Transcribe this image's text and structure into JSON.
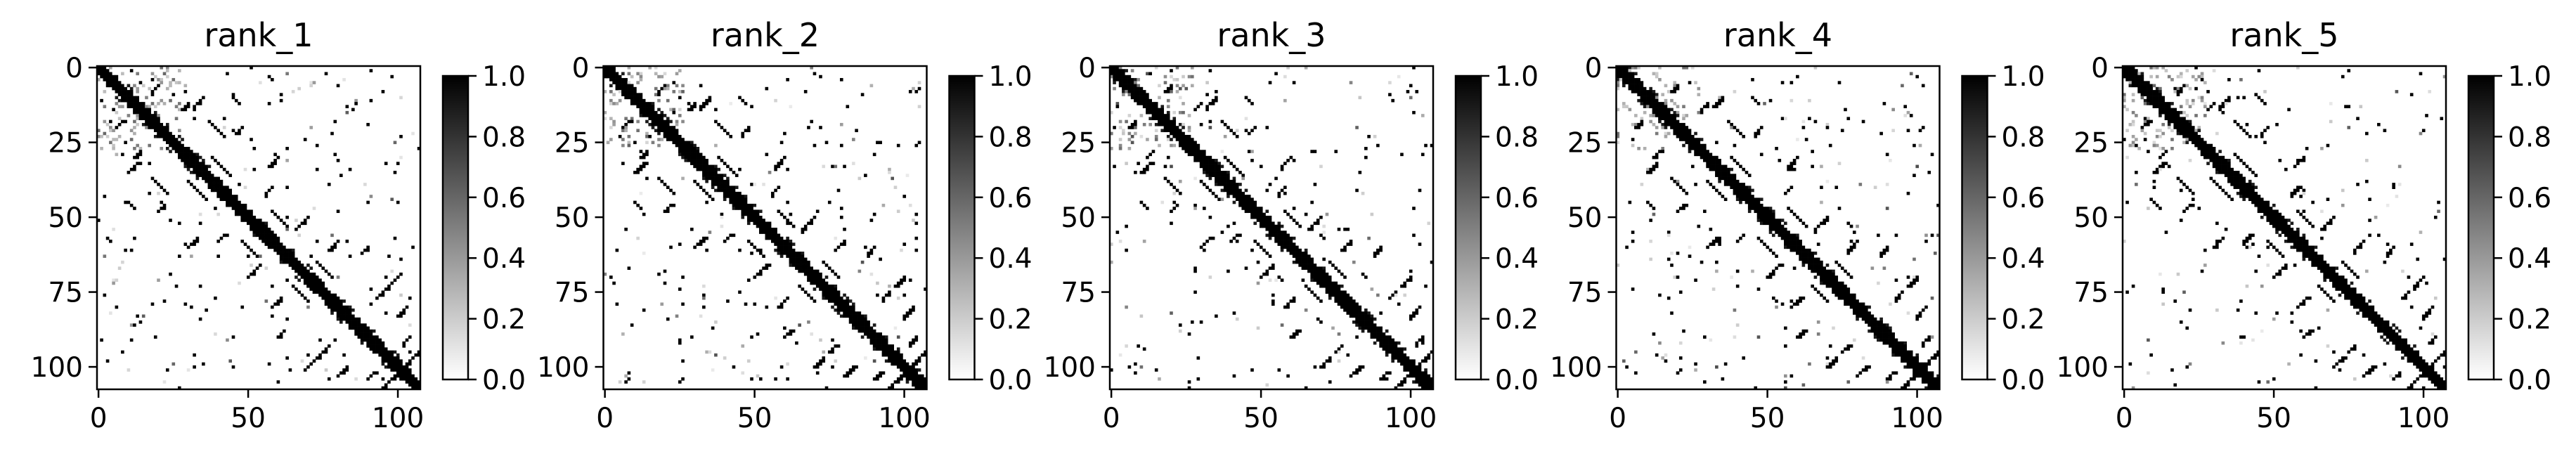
{
  "chart_data": [
    {
      "type": "heatmap",
      "title": "rank_1",
      "matrix_size": 108,
      "colormap": "Greys",
      "x_ticks": [
        "0",
        "50",
        "100"
      ],
      "y_ticks": [
        "0",
        "25",
        "50",
        "75",
        "100"
      ],
      "colorbar": {
        "range": [
          0.0,
          1.0
        ],
        "ticks": [
          "0.0",
          "0.2",
          "0.4",
          "0.6",
          "0.8",
          "1.0"
        ]
      }
    },
    {
      "type": "heatmap",
      "title": "rank_2",
      "matrix_size": 108,
      "colormap": "Greys",
      "x_ticks": [
        "0",
        "50",
        "100"
      ],
      "y_ticks": [
        "0",
        "25",
        "50",
        "75",
        "100"
      ],
      "colorbar": {
        "range": [
          0.0,
          1.0
        ],
        "ticks": [
          "0.0",
          "0.2",
          "0.4",
          "0.6",
          "0.8",
          "1.0"
        ]
      }
    },
    {
      "type": "heatmap",
      "title": "rank_3",
      "matrix_size": 108,
      "colormap": "Greys",
      "x_ticks": [
        "0",
        "50",
        "100"
      ],
      "y_ticks": [
        "0",
        "25",
        "50",
        "75",
        "100"
      ],
      "colorbar": {
        "range": [
          0.0,
          1.0
        ],
        "ticks": [
          "0.0",
          "0.2",
          "0.4",
          "0.6",
          "0.8",
          "1.0"
        ]
      }
    },
    {
      "type": "heatmap",
      "title": "rank_4",
      "matrix_size": 108,
      "colormap": "Greys",
      "x_ticks": [
        "0",
        "50",
        "100"
      ],
      "y_ticks": [
        "0",
        "25",
        "50",
        "75",
        "100"
      ],
      "colorbar": {
        "range": [
          0.0,
          1.0
        ],
        "ticks": [
          "0.0",
          "0.2",
          "0.4",
          "0.6",
          "0.8",
          "1.0"
        ]
      }
    },
    {
      "type": "heatmap",
      "title": "rank_5",
      "matrix_size": 108,
      "colormap": "Greys",
      "x_ticks": [
        "0",
        "50",
        "100"
      ],
      "y_ticks": [
        "0",
        "25",
        "50",
        "75",
        "100"
      ],
      "colorbar": {
        "range": [
          0.0,
          1.0
        ],
        "ticks": [
          "0.0",
          "0.2",
          "0.4",
          "0.6",
          "0.8",
          "1.0"
        ]
      }
    }
  ]
}
